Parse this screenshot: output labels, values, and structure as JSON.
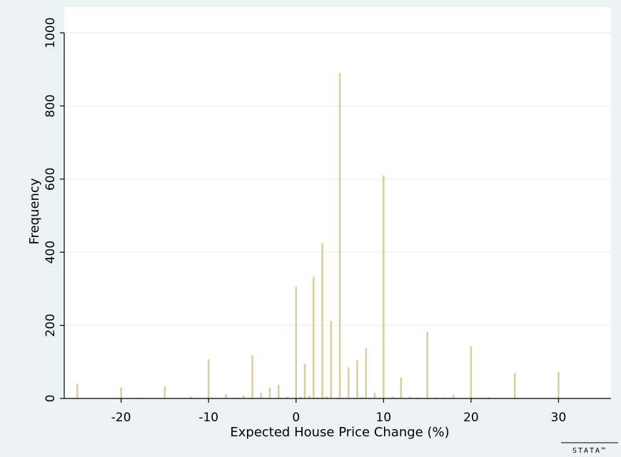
{
  "chart_data": {
    "type": "bar",
    "xlabel": "Expected House Price Change (%)",
    "ylabel": "Frequency",
    "xlim": [
      -26.5,
      36
    ],
    "ylim": [
      0,
      1000
    ],
    "x_ticks": [
      -20,
      -10,
      0,
      10,
      20,
      30
    ],
    "y_ticks": [
      0,
      200,
      400,
      600,
      800,
      1000
    ],
    "grid": true,
    "watermark": "STATA™",
    "colors": {
      "bar": "#d7cf97",
      "plot_bg": "#ffffff",
      "outer_bg": "#eaf2f3",
      "grid": "#e6eef0",
      "axis": "#000000"
    },
    "x": [
      -25,
      -20,
      -18,
      -15,
      -12,
      -10,
      -9,
      -8,
      -7,
      -6,
      -5,
      -4,
      -3,
      -2,
      -1,
      0,
      0.5,
      1,
      1.5,
      2,
      2.5,
      3,
      3.5,
      4,
      5,
      6,
      7,
      7.5,
      8,
      9,
      10,
      11,
      12,
      13,
      14,
      15,
      16,
      17,
      18,
      19,
      20,
      22,
      25,
      30
    ],
    "values": [
      40,
      30,
      3,
      33,
      5,
      107,
      2,
      12,
      3,
      8,
      118,
      15,
      30,
      37,
      5,
      305,
      5,
      95,
      8,
      333,
      4,
      425,
      5,
      212,
      890,
      85,
      105,
      4,
      138,
      15,
      610,
      5,
      58,
      5,
      3,
      182,
      3,
      3,
      10,
      2,
      143,
      4,
      70,
      72
    ]
  }
}
